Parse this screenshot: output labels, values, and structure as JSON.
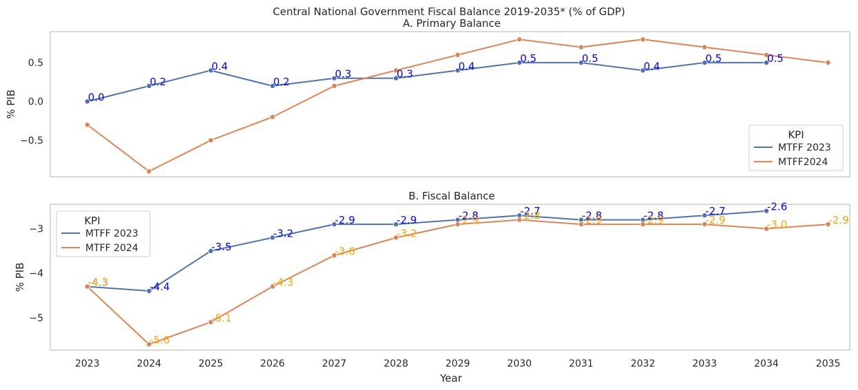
{
  "suptitle": "Central National Government Fiscal Balance 2019-2035* (% of GDP)",
  "xlabel": "Year",
  "colors": {
    "series_a": "#4c72b0",
    "series_b": "#dd8452",
    "label_a": "#0000ff",
    "label_b": "#ffa500",
    "frame": "#cccccc",
    "text": "#262626"
  },
  "chart_data": [
    {
      "type": "line",
      "title": "A. Primary Balance",
      "ylabel": "% PIB",
      "ylim": [
        -0.97,
        0.9
      ],
      "yticks": [
        {
          "value": -0.5,
          "label": "−0.5"
        },
        {
          "value": 0.0,
          "label": "0.0"
        },
        {
          "value": 0.5,
          "label": "0.5"
        }
      ],
      "grid": false,
      "legend": {
        "title": "KPI",
        "position": "lower-right"
      },
      "series": [
        {
          "name": "MTFF 2023",
          "x": [
            2023,
            2024,
            2025,
            2026,
            2027,
            2028,
            2029,
            2030,
            2031,
            2032,
            2033,
            2034
          ],
          "values": [
            0.0,
            0.2,
            0.4,
            0.2,
            0.3,
            0.3,
            0.4,
            0.5,
            0.5,
            0.4,
            0.5,
            0.5
          ],
          "labels": [
            "0.0",
            "0.2",
            "0.4",
            "0.2",
            "0.3",
            "0.3",
            "0.4",
            "0.5",
            "0.5",
            "0.4",
            "0.5",
            "0.5"
          ],
          "labeled": true
        },
        {
          "name": "MTFF2024",
          "x": [
            2023,
            2024,
            2025,
            2026,
            2027,
            2028,
            2029,
            2030,
            2031,
            2032,
            2033,
            2034,
            2035
          ],
          "values": [
            -0.3,
            -0.9,
            -0.5,
            -0.2,
            0.2,
            0.4,
            0.6,
            0.8,
            0.7,
            0.8,
            0.7,
            0.6,
            0.5
          ],
          "labels": [],
          "labeled": false
        }
      ]
    },
    {
      "type": "line",
      "title": "B. Fiscal Balance",
      "ylabel": "% PIB",
      "ylim": [
        -5.73,
        -2.45
      ],
      "yticks": [
        {
          "value": -5,
          "label": "−5"
        },
        {
          "value": -4,
          "label": "−4"
        },
        {
          "value": -3,
          "label": "−3"
        }
      ],
      "grid": false,
      "legend": {
        "title": "KPI",
        "position": "upper-left"
      },
      "series": [
        {
          "name": "MTFF 2023",
          "x": [
            2023,
            2024,
            2025,
            2026,
            2027,
            2028,
            2029,
            2030,
            2031,
            2032,
            2033,
            2034
          ],
          "values": [
            -4.3,
            -4.4,
            -3.5,
            -3.2,
            -2.9,
            -2.9,
            -2.8,
            -2.7,
            -2.8,
            -2.8,
            -2.7,
            -2.6
          ],
          "labels": [
            "-4.3",
            "-4.4",
            "-3.5",
            "-3.2",
            "-2.9",
            "-2.9",
            "-2.8",
            "-2.7",
            "-2.8",
            "-2.8",
            "-2.7",
            "-2.6"
          ],
          "labeled": true
        },
        {
          "name": "MTFF 2024",
          "x": [
            2023,
            2024,
            2025,
            2026,
            2027,
            2028,
            2029,
            2030,
            2031,
            2032,
            2033,
            2034,
            2035
          ],
          "values": [
            -4.3,
            -5.6,
            -5.1,
            -4.3,
            -3.6,
            -3.2,
            -2.9,
            -2.8,
            -2.9,
            -2.9,
            -2.9,
            -3.0,
            -2.9
          ],
          "labels": [
            "-4.3",
            "-5.6",
            "-5.1",
            "-4.3",
            "-3.6",
            "-3.2",
            "-2.9",
            "-2.8",
            "-2.9",
            "-2.9",
            "-2.9",
            "-3.0",
            "-2.9"
          ],
          "labeled": true
        }
      ]
    }
  ],
  "x_axis": {
    "ticks": [
      2023,
      2024,
      2025,
      2026,
      2027,
      2028,
      2029,
      2030,
      2031,
      2032,
      2033,
      2034,
      2035
    ],
    "xlim": [
      2022.4,
      2035.35
    ]
  }
}
